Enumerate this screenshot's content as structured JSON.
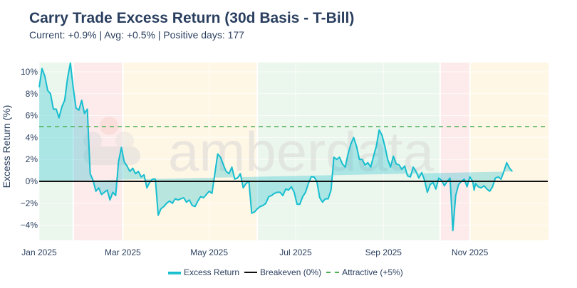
{
  "header": {
    "title": "Carry Trade Excess Return (30d Basis - T-Bill)",
    "subtitle": "Current: +0.9% | Avg: +0.5% | Positive days: 177"
  },
  "watermark": "amberdata",
  "legend": {
    "excess": "Excess Return",
    "breakeven": "Breakeven (0%)",
    "attractive": "Attractive (+5%)"
  },
  "colors": {
    "line": "#17becf",
    "fill": "rgba(23,190,207,0.3)",
    "breakeven": "#111111",
    "attractive": "#4caf50",
    "band_green": "#ebf6ec",
    "band_red": "#fdeaea",
    "band_yellow": "#fff7e6"
  },
  "chart_data": {
    "type": "area",
    "title": "Carry Trade Excess Return (30d Basis - T-Bill)",
    "subtitle": "Current: +0.9% | Avg: +0.5% | Positive days: 177",
    "xlabel": "",
    "ylabel": "Excess Return (%)",
    "ylim": [
      -5.5,
      11.2
    ],
    "yticks": [
      -4,
      -2,
      0,
      2,
      4,
      6,
      8,
      10
    ],
    "ytick_labels": [
      "−4%",
      "−2%",
      "0%",
      "2%",
      "4%",
      "6%",
      "8%",
      "10%"
    ],
    "xtick_labels": [
      "Jan 2025",
      "Mar 2025",
      "May 2025",
      "Jul 2025",
      "Sep 2025",
      "Nov 2025"
    ],
    "grid": true,
    "legend_position": "bottom",
    "reference_lines": [
      {
        "name": "Breakeven (0%)",
        "y": 0,
        "style": "solid"
      },
      {
        "name": "Attractive (+5%)",
        "y": 5,
        "style": "dashed"
      }
    ],
    "regime_bands": [
      {
        "start": "2025-01-01",
        "end": "2025-01-24",
        "color": "green"
      },
      {
        "start": "2025-01-25",
        "end": "2025-02-28",
        "color": "red"
      },
      {
        "start": "2025-03-01",
        "end": "2025-06-03",
        "color": "yellow"
      },
      {
        "start": "2025-06-04",
        "end": "2025-10-10",
        "color": "green"
      },
      {
        "start": "2025-10-11",
        "end": "2025-10-31",
        "color": "red"
      },
      {
        "start": "2025-11-01",
        "end": "2025-12-26",
        "color": "yellow"
      }
    ],
    "series": [
      {
        "name": "Excess Return",
        "x_day": [
          0,
          2,
          4,
          6,
          8,
          10,
          12,
          14,
          16,
          18,
          20,
          22,
          24,
          26,
          28,
          30,
          32,
          34,
          36,
          38,
          40,
          42,
          44,
          46,
          48,
          50,
          52,
          54,
          56,
          58,
          60,
          62,
          64,
          66,
          68,
          70,
          72,
          74,
          76,
          78,
          80,
          82,
          84,
          86,
          88,
          90,
          92,
          94,
          96,
          98,
          100,
          102,
          104,
          106,
          108,
          110,
          112,
          114,
          116,
          118,
          120,
          122,
          124,
          126,
          128,
          130,
          132,
          134,
          136,
          138,
          140,
          142,
          144,
          146,
          148,
          150,
          152,
          154,
          156,
          158,
          160,
          162,
          164,
          166,
          168,
          170,
          172,
          174,
          176,
          178,
          180,
          182,
          184,
          186,
          188,
          190,
          192,
          194,
          196,
          198,
          200,
          202,
          204,
          206,
          208,
          210,
          212,
          214,
          216,
          218,
          220,
          222,
          224,
          226,
          228,
          230,
          232,
          234,
          236,
          238,
          240,
          242,
          244,
          246,
          248,
          250,
          252,
          254,
          256,
          258,
          260,
          262,
          264,
          266,
          268,
          270,
          272,
          274,
          276,
          278,
          280,
          282,
          284,
          286,
          288,
          290,
          292,
          294,
          296,
          298,
          300,
          302,
          304,
          306,
          307,
          308,
          310,
          312,
          314,
          316,
          318,
          320,
          322,
          324,
          326,
          328,
          330,
          332,
          334,
          336,
          338,
          340,
          342,
          344,
          346,
          348,
          350,
          352,
          354,
          356,
          358
        ],
        "values": [
          8.6,
          10.3,
          9.6,
          8.3,
          8.0,
          6.6,
          6.6,
          5.8,
          6.8,
          7.4,
          9.4,
          10.8,
          8.6,
          6.7,
          6.5,
          7.4,
          6.2,
          6.6,
          0.7,
          0.1,
          -0.9,
          -0.6,
          -1.2,
          -1.0,
          -0.8,
          -1.7,
          -1.0,
          -1.3,
          1.8,
          3.1,
          1.8,
          1.4,
          0.9,
          1.2,
          0.7,
          0.9,
          0.4,
          0.6,
          -0.6,
          -0.1,
          0.2,
          0.2,
          -3.1,
          -2.5,
          -2.3,
          -2.0,
          -1.8,
          -2.0,
          -1.6,
          -1.7,
          -1.6,
          -1.5,
          -1.9,
          -1.7,
          -2.2,
          -2.3,
          -1.8,
          -1.4,
          -1.5,
          -1.2,
          -0.9,
          -1.1,
          0.7,
          2.5,
          2.2,
          1.5,
          0.9,
          0.7,
          1.3,
          0.2,
          0.3,
          0.7,
          -0.6,
          -0.2,
          0.0,
          -2.9,
          -2.8,
          -2.5,
          -2.3,
          -2.2,
          -2.0,
          -1.4,
          -1.3,
          -1.1,
          -1.0,
          -1.0,
          -1.3,
          -0.7,
          -0.8,
          -0.5,
          -1.0,
          -2.1,
          -2.1,
          -1.4,
          -1.0,
          -0.2,
          0.4,
          0.4,
          0.0,
          -1.5,
          -1.9,
          -1.6,
          -1.6,
          -0.8,
          2.2,
          2.0,
          2.2,
          1.6,
          1.3,
          2.5,
          3.4,
          4.0,
          3.2,
          2.0,
          2.0,
          1.5,
          1.7,
          1.3,
          2.3,
          3.2,
          4.7,
          4.2,
          3.2,
          2.0,
          1.3,
          2.3,
          1.6,
          1.5,
          1.1,
          1.4,
          0.5,
          0.4,
          1.3,
          0.9,
          0.3,
          0.8,
          0.1,
          -1.0,
          -0.3,
          -0.1,
          -0.7,
          0.3,
          0.1,
          -0.4,
          0.0,
          0.3,
          -4.5,
          -1.3,
          -0.3,
          0.0,
          0.2,
          -0.5,
          0.4,
          0.0,
          -0.8,
          -0.2,
          -0.5,
          -0.6,
          -0.4,
          -0.7,
          -0.9,
          -0.5,
          0.3,
          0.4,
          0.2,
          0.9,
          1.7,
          1.2,
          0.9
        ]
      },
      {
        "name": "Breakeven (0%)",
        "values": [
          0
        ]
      },
      {
        "name": "Attractive (+5%)",
        "values": [
          5
        ]
      }
    ]
  }
}
